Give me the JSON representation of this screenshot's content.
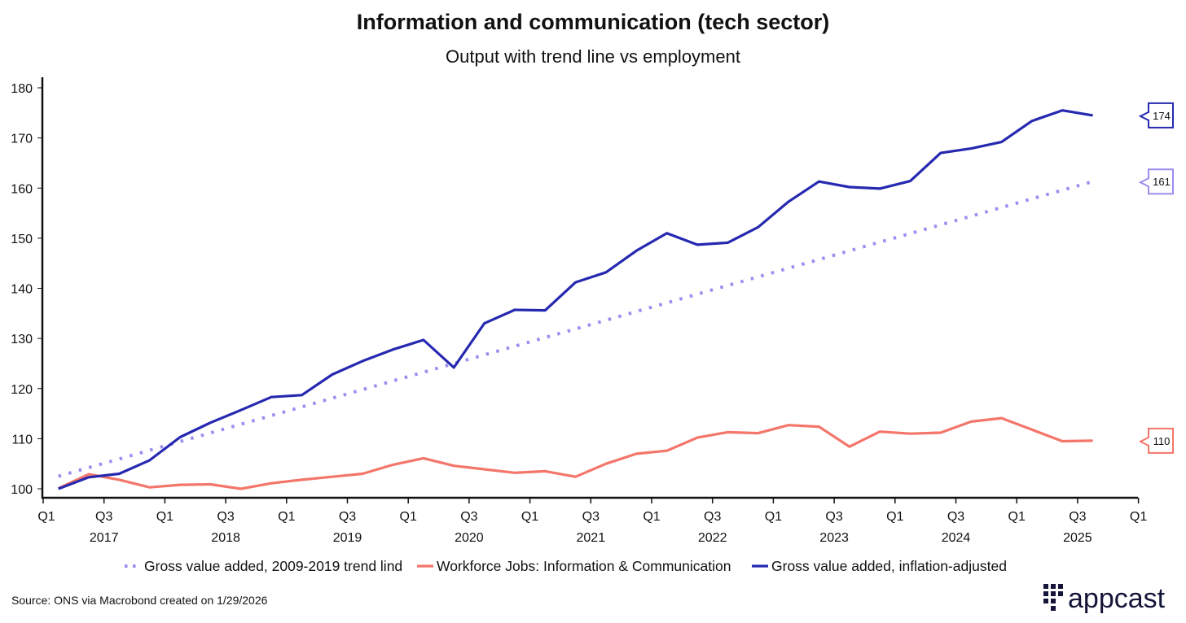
{
  "chart_data": {
    "type": "line",
    "title": "Information and communication (tech sector)",
    "subtitle": "Output with trend line vs employment",
    "xlabel": "",
    "ylabel": "",
    "ylim": [
      100,
      180
    ],
    "yticks": [
      100,
      110,
      120,
      130,
      140,
      150,
      160,
      170,
      180
    ],
    "xticks": [
      {
        "q": "Q1",
        "year": ""
      },
      {
        "q": "Q3",
        "year": "2017"
      },
      {
        "q": "Q1",
        "year": ""
      },
      {
        "q": "Q3",
        "year": "2018"
      },
      {
        "q": "Q1",
        "year": ""
      },
      {
        "q": "Q3",
        "year": "2019"
      },
      {
        "q": "Q1",
        "year": ""
      },
      {
        "q": "Q3",
        "year": "2020"
      },
      {
        "q": "Q1",
        "year": ""
      },
      {
        "q": "Q3",
        "year": "2021"
      },
      {
        "q": "Q1",
        "year": ""
      },
      {
        "q": "Q3",
        "year": "2022"
      },
      {
        "q": "Q1",
        "year": ""
      },
      {
        "q": "Q3",
        "year": "2023"
      },
      {
        "q": "Q1",
        "year": ""
      },
      {
        "q": "Q3",
        "year": "2024"
      },
      {
        "q": "Q1",
        "year": ""
      },
      {
        "q": "Q3",
        "year": "2025"
      },
      {
        "q": "Q1",
        "year": ""
      }
    ],
    "x_start": "2017 Q1",
    "x_end": "2025 Q3",
    "grid": false,
    "legend_position": "bottom",
    "series": [
      {
        "name": "Gross value added, 2009-2019 trend lind",
        "color": "#9b8ef0",
        "style": "dotted",
        "end_label": "161",
        "values": [
          102.5,
          104.23,
          105.96,
          107.69,
          109.42,
          111.15,
          112.88,
          114.61,
          116.34,
          118.07,
          119.8,
          121.53,
          123.26,
          124.99,
          126.72,
          128.45,
          130.18,
          131.91,
          133.64,
          135.37,
          137.1,
          138.83,
          140.56,
          142.29,
          144.02,
          145.75,
          147.48,
          149.21,
          150.94,
          152.67,
          154.4,
          156.13,
          157.86,
          159.59,
          161.3
        ]
      },
      {
        "name": "Workforce Jobs: Information & Communication",
        "color": "#f4766a",
        "style": "solid",
        "end_label": "110",
        "values": [
          100.1,
          102.9,
          101.8,
          100.3,
          100.8,
          100.9,
          100.0,
          101.1,
          101.8,
          102.4,
          103.0,
          104.8,
          106.1,
          104.6,
          103.9,
          103.2,
          103.5,
          102.4,
          105.0,
          107.0,
          107.6,
          110.2,
          111.3,
          111.1,
          112.7,
          112.4,
          108.4,
          111.4,
          111.0,
          111.2,
          113.4,
          114.1,
          111.8,
          109.5,
          109.6
        ]
      },
      {
        "name": "Gross value added, inflation-adjusted",
        "color": "#2629b0",
        "style": "solid",
        "end_label": "174",
        "values": [
          100.0,
          102.3,
          103.0,
          105.7,
          110.3,
          113.2,
          115.7,
          118.3,
          118.7,
          122.8,
          125.5,
          127.8,
          129.7,
          124.2,
          133.0,
          135.7,
          135.6,
          141.2,
          143.2,
          147.5,
          151.0,
          148.7,
          149.1,
          152.2,
          157.3,
          161.3,
          160.2,
          159.9,
          161.4,
          167.0,
          167.9,
          169.2,
          173.4,
          175.5,
          174.5
        ]
      }
    ]
  },
  "footer": {
    "source": "Source: ONS via Macrobond created on 1/29/2026",
    "logo_text": "appcast"
  }
}
